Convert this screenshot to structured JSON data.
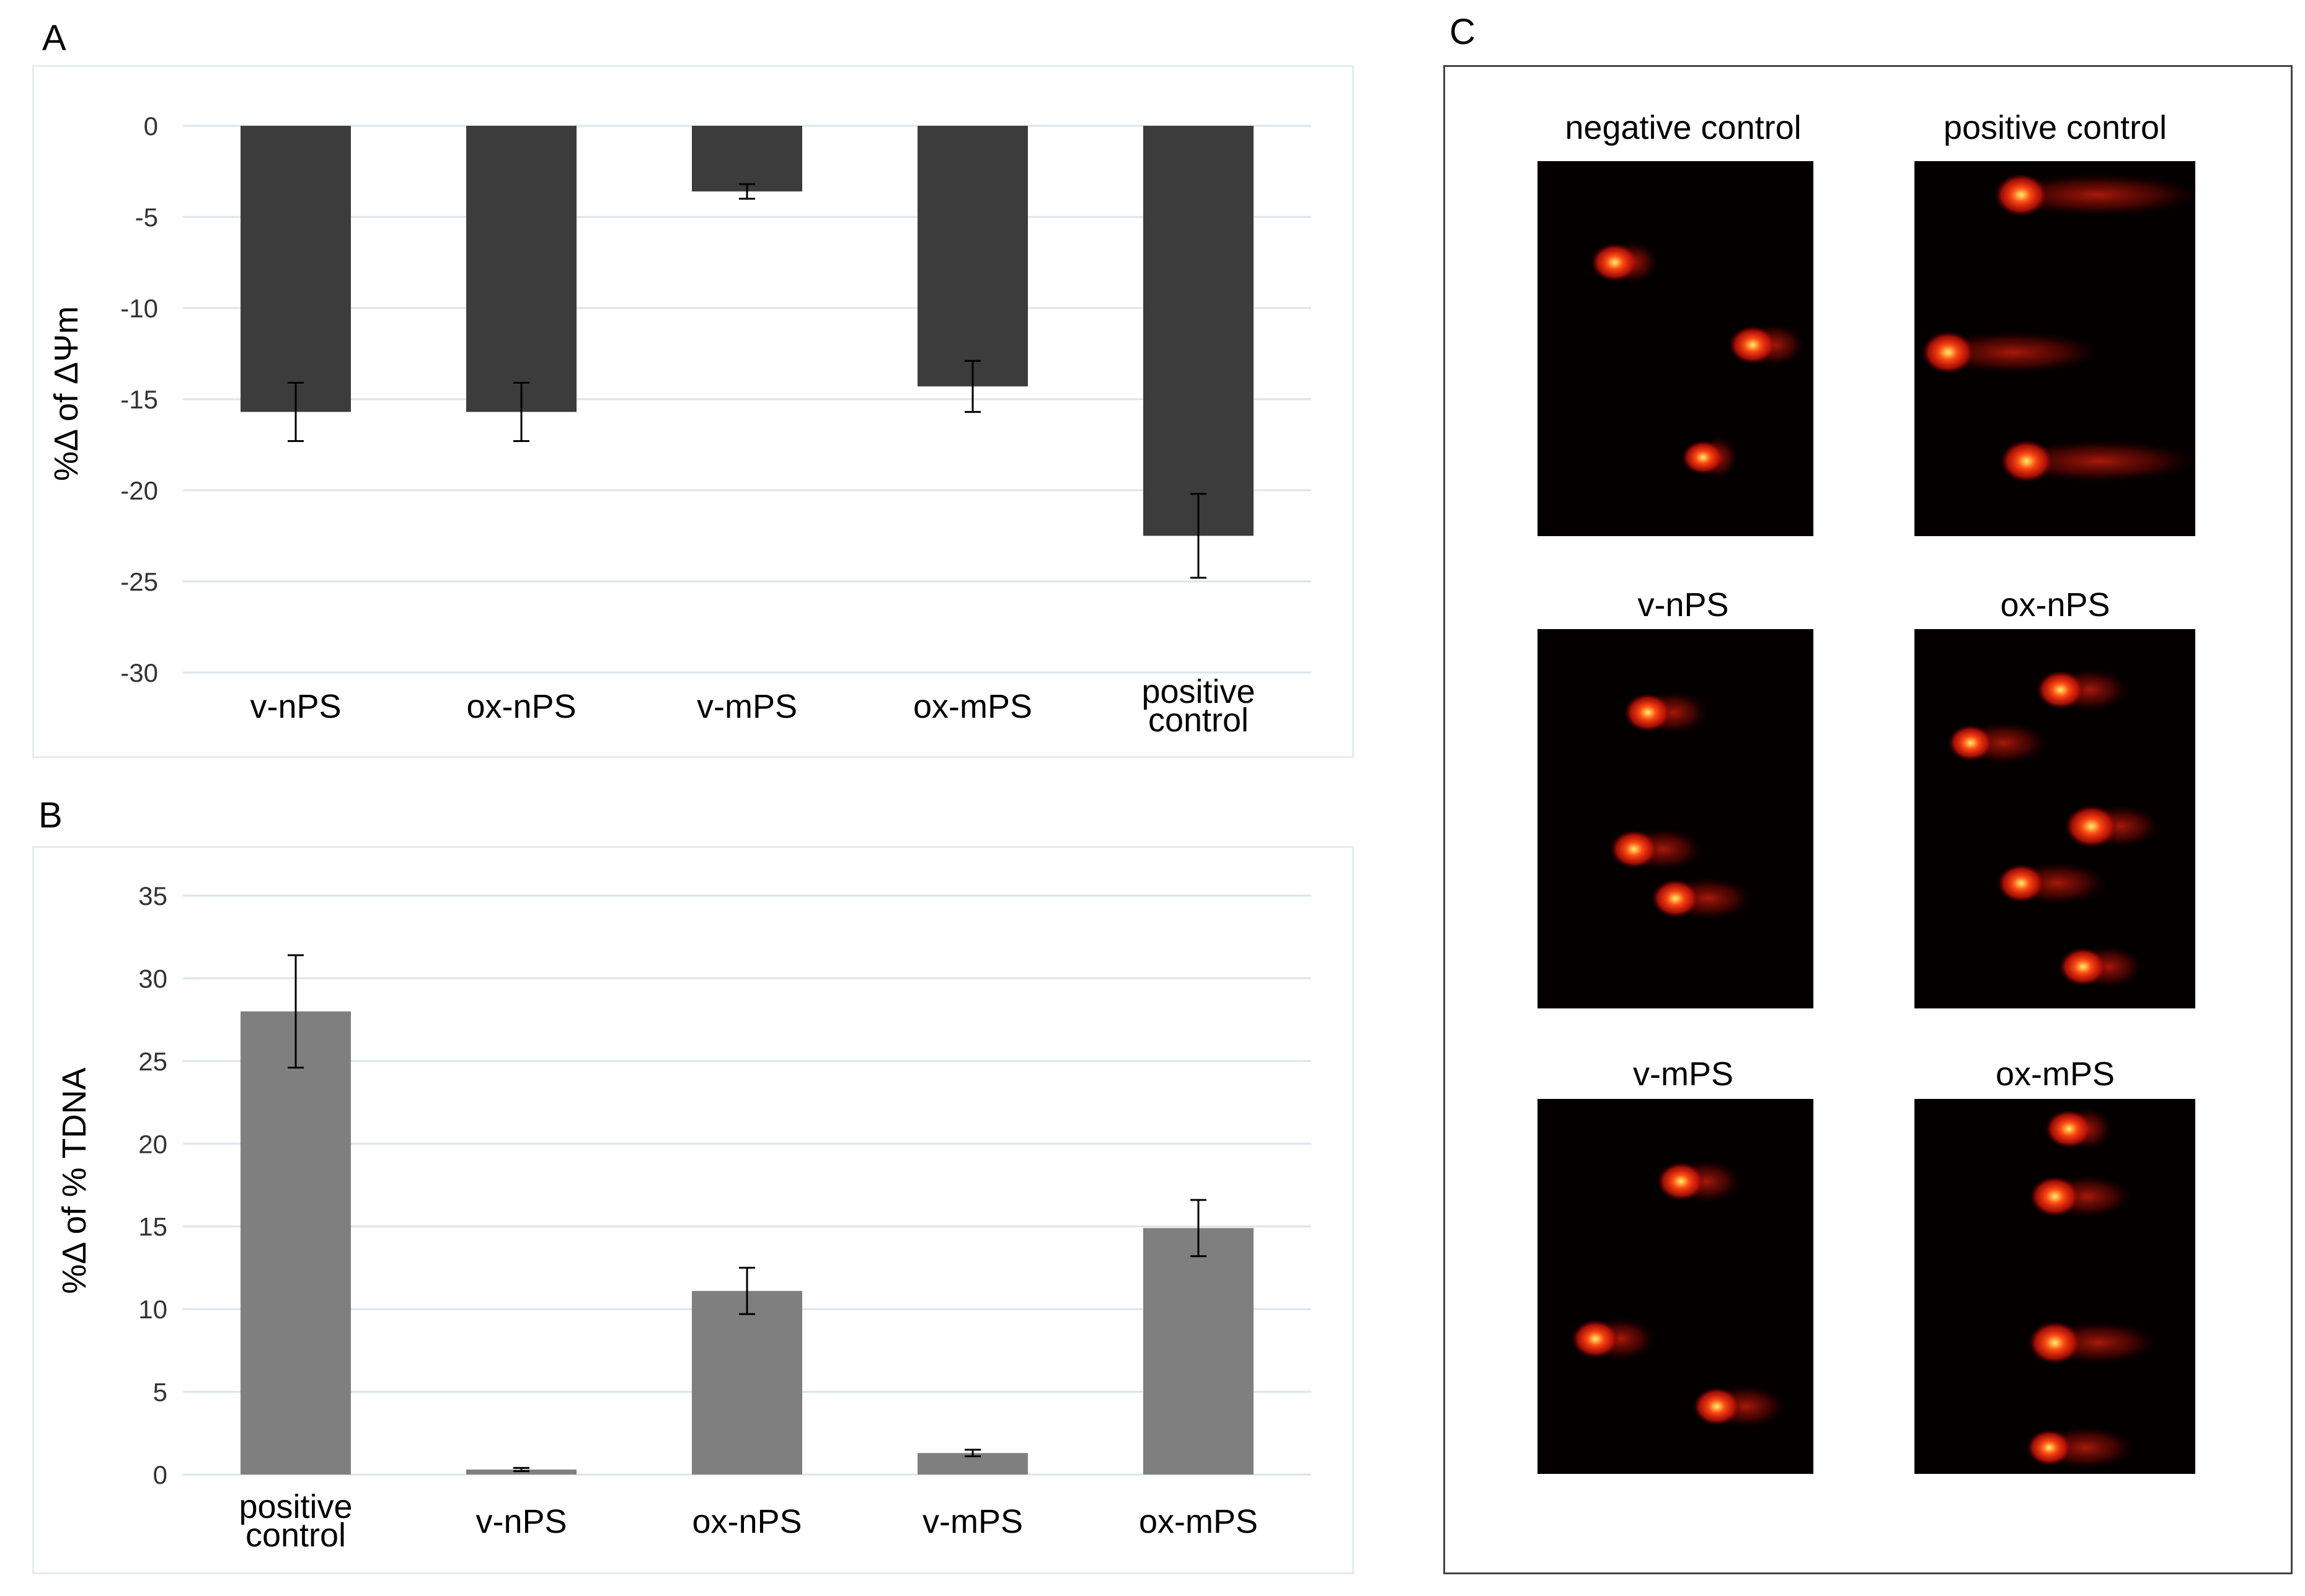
{
  "panels": {
    "a_letter": "A",
    "b_letter": "B",
    "c_letter": "C"
  },
  "chart_data": [
    {
      "panel": "A",
      "type": "bar",
      "categories": [
        [
          "v-nPS"
        ],
        [
          "ox-nPS"
        ],
        [
          "v-mPS"
        ],
        [
          "ox-mPS"
        ],
        [
          "positive",
          "control"
        ]
      ],
      "values": [
        -15.7,
        -15.7,
        -3.6,
        -14.3,
        -22.5
      ],
      "errors": [
        1.6,
        1.6,
        0.4,
        1.4,
        2.3
      ],
      "ylabel": "%Δ of ΔΨm",
      "ylim": [
        -30,
        0
      ],
      "yticks": [
        0,
        -5,
        -10,
        -15,
        -20,
        -25,
        -30
      ],
      "grid": true,
      "bar_color": "#3c3c3c"
    },
    {
      "panel": "B",
      "type": "bar",
      "categories": [
        [
          "positive",
          "control"
        ],
        [
          "v-nPS"
        ],
        [
          "ox-nPS"
        ],
        [
          "v-mPS"
        ],
        [
          "ox-mPS"
        ]
      ],
      "values": [
        28.0,
        0.3,
        11.1,
        1.3,
        14.9
      ],
      "errors": [
        3.4,
        0.1,
        1.4,
        0.2,
        1.7
      ],
      "ylabel": "%Δ of % TDNA",
      "ylim": [
        0,
        35
      ],
      "yticks": [
        0,
        5,
        10,
        15,
        20,
        25,
        30,
        35
      ],
      "grid": true,
      "bar_color": "#7f7f7f"
    }
  ],
  "comet_panel": {
    "images": [
      {
        "label": "negative control",
        "comets": [
          [
            0.28,
            0.27,
            0.9,
            0.1
          ],
          [
            0.78,
            0.49,
            0.9,
            0.15
          ],
          [
            0.6,
            0.79,
            0.8,
            0.05
          ]
        ]
      },
      {
        "label": "positive control",
        "comets": [
          [
            0.38,
            0.09,
            1.0,
            0.9
          ],
          [
            0.12,
            0.51,
            1.0,
            0.75
          ],
          [
            0.4,
            0.8,
            1.0,
            0.85
          ]
        ]
      },
      {
        "label": "v-nPS",
        "comets": [
          [
            0.4,
            0.22,
            0.9,
            0.2
          ],
          [
            0.35,
            0.58,
            0.9,
            0.25
          ],
          [
            0.5,
            0.71,
            0.9,
            0.3
          ]
        ]
      },
      {
        "label": "ox-nPS",
        "comets": [
          [
            0.52,
            0.16,
            0.9,
            0.25
          ],
          [
            0.2,
            0.3,
            0.85,
            0.3
          ],
          [
            0.63,
            0.52,
            1.0,
            0.25
          ],
          [
            0.38,
            0.67,
            0.9,
            0.35
          ],
          [
            0.6,
            0.89,
            0.9,
            0.2
          ]
        ]
      },
      {
        "label": "v-mPS",
        "comets": [
          [
            0.52,
            0.22,
            0.9,
            0.2
          ],
          [
            0.21,
            0.64,
            0.9,
            0.2
          ],
          [
            0.65,
            0.82,
            0.9,
            0.25
          ]
        ]
      },
      {
        "label": "ox-mPS",
        "comets": [
          [
            0.55,
            0.08,
            0.9,
            0.1
          ],
          [
            0.5,
            0.26,
            0.95,
            0.3
          ],
          [
            0.5,
            0.65,
            1.0,
            0.45
          ],
          [
            0.48,
            0.93,
            0.85,
            0.35
          ]
        ]
      }
    ]
  }
}
